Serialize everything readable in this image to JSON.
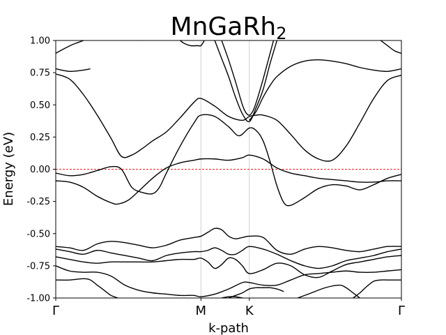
{
  "chart_data": {
    "type": "line",
    "title_main": "MnGaRh",
    "title_sub": "2",
    "xlabel": "k-path",
    "ylabel": "Energy (eV)",
    "xlim": [
      0,
      1.0
    ],
    "ylim": [
      -1.0,
      1.0
    ],
    "grid": false,
    "legend": "none",
    "fermi_level": 0.0,
    "fermi_color": "#e8222a",
    "band_color": "#000000",
    "kpoints": [
      {
        "label": "Γ",
        "x": 0.0
      },
      {
        "label": "M",
        "x": 0.42
      },
      {
        "label": "K",
        "x": 0.56
      },
      {
        "label": "Γ",
        "x": 1.0
      }
    ],
    "y_ticks": [
      "-1.00",
      "-0.75",
      "-0.50",
      "-0.25",
      "0.00",
      "0.25",
      "0.50",
      "0.75",
      "1.00"
    ],
    "y_tick_values": [
      -1.0,
      -0.75,
      -0.5,
      -0.25,
      0.0,
      0.25,
      0.5,
      0.75,
      1.0
    ],
    "series": [
      {
        "x": [
          0,
          0.04,
          0.08,
          0.12,
          0.16,
          0.18,
          0.21,
          0.24,
          0.28,
          0.32,
          0.36,
          0.4,
          0.42,
          0.46,
          0.5,
          0.54,
          0.56,
          0.6,
          0.64,
          0.68,
          0.72,
          0.76,
          0.8,
          0.84,
          0.88,
          0.92,
          0.96,
          1.0
        ],
        "y": [
          -0.09,
          -0.1,
          -0.14,
          -0.21,
          -0.26,
          -0.27,
          -0.24,
          -0.17,
          -0.07,
          0.01,
          0.05,
          0.07,
          0.08,
          0.08,
          0.07,
          0.09,
          0.11,
          0.08,
          0.01,
          -0.03,
          -0.05,
          -0.07,
          -0.08,
          -0.09,
          -0.1,
          -0.1,
          -0.09,
          -0.09
        ]
      },
      {
        "x": [
          0,
          0.04,
          0.08,
          0.12,
          0.16,
          0.19,
          0.22,
          0.25,
          0.28,
          0.3,
          0.32,
          0.36,
          0.4,
          0.42,
          0.46,
          0.5,
          0.53,
          0.56,
          0.58,
          0.6,
          0.62,
          0.64,
          0.66,
          0.68,
          0.72,
          0.76,
          0.8,
          0.84,
          0.88,
          0.92,
          0.96,
          1.0
        ],
        "y": [
          -0.03,
          -0.05,
          -0.04,
          -0.01,
          0.02,
          0.0,
          -0.14,
          -0.18,
          -0.19,
          -0.14,
          -0.03,
          0.18,
          0.36,
          0.42,
          0.41,
          0.33,
          0.26,
          0.32,
          0.3,
          0.22,
          0.06,
          -0.13,
          -0.26,
          -0.28,
          -0.22,
          -0.15,
          -0.12,
          -0.13,
          -0.16,
          -0.12,
          -0.07,
          -0.04
        ]
      },
      {
        "x": [
          0,
          0.04,
          0.08,
          0.12,
          0.16,
          0.19,
          0.22,
          0.25,
          0.28,
          0.32,
          0.36,
          0.4,
          0.42,
          0.46,
          0.5,
          0.54,
          0.56,
          0.58,
          0.6,
          0.64,
          0.68,
          0.72,
          0.76,
          0.8,
          0.84,
          0.88,
          0.92,
          0.96,
          1.0
        ],
        "y": [
          0.74,
          0.7,
          0.58,
          0.42,
          0.24,
          0.1,
          0.11,
          0.16,
          0.22,
          0.29,
          0.4,
          0.52,
          0.55,
          0.49,
          0.41,
          0.38,
          0.41,
          0.42,
          0.42,
          0.38,
          0.27,
          0.15,
          0.08,
          0.07,
          0.18,
          0.36,
          0.55,
          0.69,
          0.73
        ]
      },
      {
        "x": [
          0.56,
          0.58,
          0.6,
          0.62,
          0.64,
          0.68,
          0.72,
          0.76,
          0.8,
          0.84,
          0.88,
          0.92,
          0.96,
          1.0
        ],
        "y": [
          0.38,
          0.45,
          0.56,
          0.65,
          0.72,
          0.8,
          0.84,
          0.85,
          0.84,
          0.82,
          0.79,
          0.77,
          0.76,
          0.78
        ]
      },
      {
        "x": [
          0,
          0.04,
          0.08,
          0.1
        ],
        "y": [
          0.78,
          0.76,
          0.77,
          0.78
        ]
      },
      {
        "x": [
          0,
          0.02,
          0.05,
          0.08,
          0.12,
          0.16,
          0.2,
          0.25
        ],
        "y": [
          0.9,
          0.93,
          0.97,
          1.0,
          1.05,
          1.08,
          1.05,
          1.0
        ]
      },
      {
        "x": [
          0.36,
          0.37,
          0.39,
          0.41,
          0.42,
          0.43
        ],
        "y": [
          1.0,
          0.98,
          0.96,
          0.96,
          0.96,
          1.0
        ]
      },
      {
        "x": [
          0.48,
          0.5,
          0.52,
          0.54,
          0.55,
          0.56,
          0.57,
          0.58,
          0.6,
          0.63
        ],
        "y": [
          1.0,
          0.85,
          0.68,
          0.5,
          0.44,
          0.42,
          0.45,
          0.52,
          0.7,
          1.0
        ]
      },
      {
        "x": [
          0.46,
          0.48,
          0.5,
          0.52,
          0.54,
          0.56,
          0.58,
          0.6,
          0.62,
          0.64
        ],
        "y": [
          1.0,
          0.86,
          0.72,
          0.56,
          0.43,
          0.37,
          0.48,
          0.62,
          0.82,
          1.0
        ]
      },
      {
        "x": [
          0.94,
          0.96,
          0.98,
          1.0
        ],
        "y": [
          1.0,
          0.96,
          0.92,
          0.9
        ]
      },
      {
        "x": [
          0,
          0.04,
          0.08,
          0.12,
          0.16,
          0.2,
          0.24,
          0.28,
          0.32,
          0.36,
          0.4,
          0.42,
          0.44,
          0.46,
          0.48,
          0.5,
          0.52,
          0.54,
          0.56,
          0.6,
          0.64,
          0.68,
          0.72,
          0.76,
          0.8,
          0.84,
          0.88,
          0.92,
          0.96,
          1.0
        ],
        "y": [
          -0.6,
          -0.61,
          -0.63,
          -0.58,
          -0.56,
          -0.57,
          -0.59,
          -0.61,
          -0.59,
          -0.55,
          -0.53,
          -0.52,
          -0.49,
          -0.46,
          -0.47,
          -0.52,
          -0.54,
          -0.53,
          -0.52,
          -0.53,
          -0.63,
          -0.66,
          -0.62,
          -0.6,
          -0.61,
          -0.63,
          -0.64,
          -0.62,
          -0.6,
          -0.6
        ]
      },
      {
        "x": [
          0,
          0.04,
          0.08,
          0.12,
          0.16,
          0.2,
          0.24,
          0.28,
          0.32,
          0.36,
          0.4,
          0.42,
          0.44,
          0.46,
          0.48,
          0.5,
          0.52,
          0.54,
          0.56,
          0.6,
          0.64,
          0.68,
          0.72,
          0.76,
          0.8,
          0.84,
          0.88,
          0.92,
          0.96,
          1.0
        ],
        "y": [
          -0.62,
          -0.64,
          -0.66,
          -0.63,
          -0.65,
          -0.67,
          -0.69,
          -0.71,
          -0.67,
          -0.65,
          -0.64,
          -0.64,
          -0.63,
          -0.61,
          -0.63,
          -0.66,
          -0.66,
          -0.63,
          -0.6,
          -0.62,
          -0.66,
          -0.71,
          -0.75,
          -0.77,
          -0.75,
          -0.71,
          -0.69,
          -0.67,
          -0.64,
          -0.62
        ]
      },
      {
        "x": [
          0,
          0.04,
          0.08,
          0.12,
          0.16,
          0.2,
          0.24,
          0.28,
          0.32,
          0.36,
          0.4,
          0.42,
          0.44,
          0.46,
          0.48,
          0.5,
          0.52,
          0.54,
          0.56,
          0.6,
          0.64,
          0.68,
          0.72,
          0.76,
          0.8,
          0.84,
          0.88,
          0.92,
          0.96,
          1.0
        ],
        "y": [
          -0.68,
          -0.7,
          -0.72,
          -0.73,
          -0.72,
          -0.72,
          -0.72,
          -0.72,
          -0.71,
          -0.7,
          -0.7,
          -0.69,
          -0.72,
          -0.77,
          -0.74,
          -0.69,
          -0.7,
          -0.75,
          -0.81,
          -0.78,
          -0.73,
          -0.75,
          -0.82,
          -0.84,
          -0.79,
          -0.74,
          -0.72,
          -0.7,
          -0.68,
          -0.67
        ]
      },
      {
        "x": [
          0,
          0.04,
          0.08,
          0.12,
          0.16,
          0.2,
          0.24,
          0.28,
          0.32,
          0.36,
          0.4,
          0.42,
          0.46,
          0.5,
          0.54,
          0.56,
          0.6,
          0.64,
          0.68,
          0.72,
          0.76,
          0.8,
          0.84,
          0.88,
          0.92,
          0.96,
          1.0
        ],
        "y": [
          -0.75,
          -0.79,
          -0.8,
          -0.8,
          -0.83,
          -0.9,
          -0.94,
          -0.96,
          -0.97,
          -0.98,
          -0.98,
          -0.99,
          -0.97,
          -0.93,
          -0.88,
          -0.88,
          -0.9,
          -0.9,
          -0.86,
          -0.82,
          -0.81,
          -0.8,
          -0.79,
          -0.8,
          -0.8,
          -0.79,
          -0.78
        ]
      },
      {
        "x": [
          0,
          0.04,
          0.08,
          0.1,
          0.12,
          0.14,
          0.16,
          0.18
        ],
        "y": [
          -0.86,
          -0.86,
          -0.85,
          -0.86,
          -0.9,
          -0.94,
          -0.98,
          -1.0
        ]
      },
      {
        "x": [
          0.5,
          0.52,
          0.54,
          0.56,
          0.58,
          0.6,
          0.62,
          0.64,
          0.66
        ],
        "y": [
          -1.0,
          -0.98,
          -0.96,
          -0.93,
          -0.92,
          -0.92,
          -0.92,
          -0.93,
          -0.95
        ]
      },
      {
        "x": [
          0.86,
          0.88,
          0.9,
          0.92,
          0.94,
          0.96,
          0.98,
          1.0
        ],
        "y": [
          -1.0,
          -0.96,
          -0.91,
          -0.87,
          -0.86,
          -0.86,
          -0.86,
          -0.86
        ]
      },
      {
        "x": [
          0.48,
          0.5,
          0.52,
          0.54,
          0.56
        ],
        "y": [
          -1.0,
          -0.99,
          -0.99,
          -1.0,
          -1.01
        ]
      },
      {
        "x": [
          0.7,
          0.74,
          0.78,
          0.82,
          0.84,
          0.86,
          0.88
        ],
        "y": [
          -1.0,
          -0.96,
          -0.92,
          -0.9,
          -0.92,
          -0.96,
          -1.0
        ]
      }
    ]
  }
}
